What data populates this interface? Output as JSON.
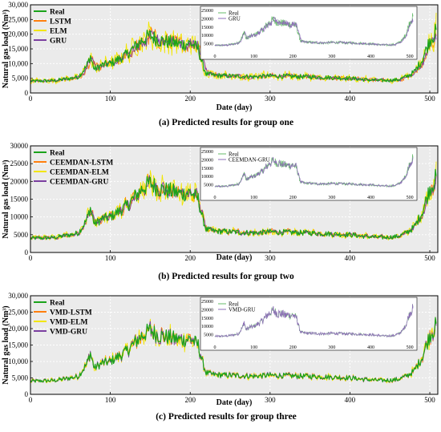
{
  "colors": {
    "Real": "#1aa31a",
    "LSTM": "#ff7f0e",
    "ELM": "#f2e600",
    "GRU": "#7b3fa0",
    "inset_real": "#66bb6a",
    "inset_model": "#8e6fb8"
  },
  "chart_data": [
    {
      "type": "line",
      "caption": "(a) Predicted results for group one",
      "xlabel": "Date (day)",
      "ylabel": "Natural gas load (Nm³)",
      "xlim": [
        0,
        510
      ],
      "ylim": [
        0,
        30000
      ],
      "x_ticks": [
        0,
        100,
        200,
        300,
        400,
        500
      ],
      "y_ticks": [
        "0",
        "5,000",
        "10,000",
        "15,000",
        "20,000",
        "25,000",
        "30,000"
      ],
      "grid": true,
      "legend": "top-left",
      "series_names": [
        "Real",
        "LSTM",
        "ELM",
        "GRU"
      ],
      "inset": {
        "legend": [
          "Real",
          "GRU"
        ],
        "x_ticks": [
          0,
          100,
          200,
          300,
          400,
          500
        ],
        "y_ticks": [
          5000,
          10000,
          15000,
          20000,
          25000
        ]
      }
    },
    {
      "type": "line",
      "caption": "(b) Predicted results for group two",
      "xlabel": "Date (day)",
      "ylabel": "Natural gas load (Nm³)",
      "xlim": [
        0,
        510
      ],
      "ylim": [
        0,
        30000
      ],
      "x_ticks": [
        0,
        100,
        200,
        300,
        400,
        500
      ],
      "y_ticks": [
        "0",
        "5000",
        "10000",
        "15000",
        "20000",
        "25000",
        "30000"
      ],
      "grid": true,
      "legend": "top-left",
      "series_names": [
        "Real",
        "CEEMDAN-LSTM",
        "CEEMDAN-ELM",
        "CEEMDAN-GRU"
      ],
      "inset": {
        "legend": [
          "Real",
          "CEEMDAN-GRU"
        ],
        "x_ticks": [
          0,
          100,
          200,
          300,
          400,
          500
        ],
        "y_ticks": [
          5000,
          10000,
          15000,
          20000,
          25000
        ]
      }
    },
    {
      "type": "line",
      "caption": "(c) Predicted results for group three",
      "xlabel": "Date (day)",
      "ylabel": "Natural gas load (Nm³)",
      "xlim": [
        0,
        510
      ],
      "ylim": [
        0,
        30000
      ],
      "x_ticks": [
        0,
        100,
        200,
        300,
        400,
        500
      ],
      "y_ticks": [
        "0",
        "5,000",
        "10,000",
        "15,000",
        "20,000",
        "25,000",
        "30,000"
      ],
      "grid": true,
      "legend": "top-left",
      "series_names": [
        "Real",
        "VMD-LSTM",
        "VMD-ELM",
        "VMD-GRU"
      ],
      "inset": {
        "legend": [
          "Real",
          "VMD-GRU"
        ],
        "x_ticks": [
          0,
          100,
          200,
          300,
          400,
          500
        ],
        "y_ticks": [
          5000,
          10000,
          15000,
          20000,
          25000
        ]
      }
    }
  ],
  "real_profile": {
    "x": [
      0,
      30,
      50,
      60,
      70,
      75,
      80,
      90,
      100,
      110,
      120,
      130,
      140,
      150,
      160,
      170,
      180,
      190,
      200,
      210,
      215,
      220,
      230,
      250,
      280,
      300,
      330,
      350,
      380,
      400,
      420,
      440,
      460,
      470,
      480,
      490,
      500,
      508
    ],
    "y": [
      4000,
      4200,
      5000,
      5500,
      9000,
      12500,
      8000,
      9500,
      10000,
      11500,
      13000,
      15500,
      18000,
      19500,
      18000,
      17500,
      17000,
      16500,
      17000,
      15000,
      10000,
      6500,
      6000,
      5800,
      5500,
      5800,
      5600,
      5500,
      5200,
      5000,
      4500,
      4200,
      4500,
      5500,
      7000,
      11000,
      18000,
      21000
    ]
  }
}
